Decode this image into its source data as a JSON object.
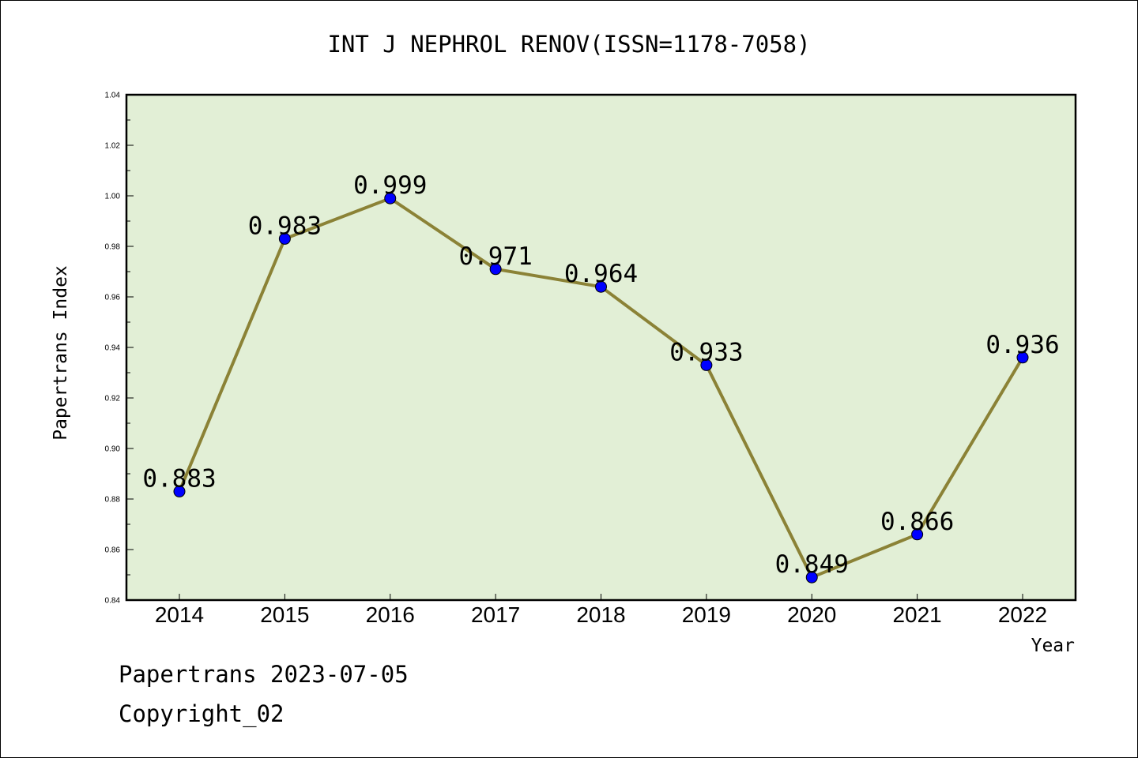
{
  "chart_data": {
    "type": "line",
    "title": "INT J NEPHROL RENOV(ISSN=1178-7058)",
    "xlabel": "Year",
    "ylabel": "Papertrans Index",
    "categories": [
      "2014",
      "2015",
      "2016",
      "2017",
      "2018",
      "2019",
      "2020",
      "2021",
      "2022"
    ],
    "series": [
      {
        "values": [
          0.883,
          0.983,
          0.999,
          0.971,
          0.964,
          0.933,
          0.849,
          0.866,
          0.936
        ],
        "labels": [
          "0.883",
          "0.983",
          "0.999",
          "0.971",
          "0.964",
          "0.933",
          "0.849",
          "0.866",
          "0.936"
        ]
      }
    ],
    "ylim": [
      0.84,
      1.04
    ],
    "yticks": [
      "0.84",
      "0.86",
      "0.88",
      "0.90",
      "0.92",
      "0.94",
      "0.96",
      "0.98",
      "1.00",
      "1.02",
      "1.04"
    ],
    "grid": false,
    "colors": {
      "plot_background": "#e2efd6",
      "line": "#8b8236",
      "marker": "#0000ff"
    }
  },
  "footer": {
    "line1": "Papertrans 2023-07-05",
    "line2": "Copyright_02"
  }
}
